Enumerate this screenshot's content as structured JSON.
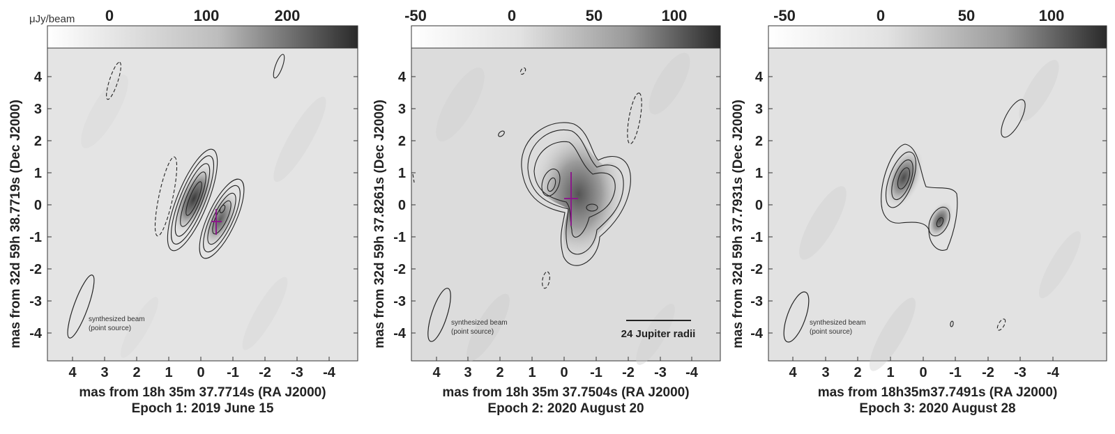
{
  "panels": [
    {
      "units_label": "μJy/beam",
      "colorbar_ticks": [
        "0",
        "100",
        "200"
      ],
      "x_ticks": [
        "4",
        "3",
        "2",
        "1",
        "0",
        "-1",
        "-2",
        "-3",
        "-4"
      ],
      "y_ticks": [
        "4",
        "3",
        "2",
        "1",
        "0",
        "-1",
        "-2",
        "-3",
        "-4"
      ],
      "xlabel": "mas from 18h 35m 37.7714s   (RA J2000)",
      "ylabel": "mas from  32d 59h 38.7719s  (Dec J2000)",
      "epoch": "Epoch 1: 2019 June 15",
      "beam_label_1": "synthesized beam",
      "beam_label_2": "(point source)",
      "scale_bar": ""
    },
    {
      "units_label": "",
      "colorbar_ticks": [
        "-50",
        "0",
        "50",
        "100"
      ],
      "x_ticks": [
        "4",
        "3",
        "2",
        "1",
        "0",
        "-1",
        "-2",
        "-3",
        "-4"
      ],
      "y_ticks": [
        "4",
        "3",
        "2",
        "1",
        "0",
        "-1",
        "-2",
        "-3",
        "-4"
      ],
      "xlabel": "mas from 18h 35m 37.7504s  (RA J2000)",
      "ylabel": "mas from  32d 59h 37.8261s  (Dec J2000)",
      "epoch": "Epoch 2: 2020 August 20",
      "beam_label_1": "synthesized beam",
      "beam_label_2": "(point source)",
      "scale_bar": "24 Jupiter radii"
    },
    {
      "units_label": "",
      "colorbar_ticks": [
        "-50",
        "0",
        "50",
        "100"
      ],
      "x_ticks": [
        "4",
        "3",
        "2",
        "1",
        "0",
        "-1",
        "-2",
        "-3",
        "-4"
      ],
      "y_ticks": [
        "4",
        "3",
        "2",
        "1",
        "0",
        "-1",
        "-2",
        "-3",
        "-4"
      ],
      "xlabel": "mas from  18h35m37.7491s    (RA J2000)",
      "ylabel": "mas from  32d 59h 37.7931s  (Dec J2000)",
      "epoch": "Epoch 3: 2020 August 28",
      "beam_label_1": "synthesized beam",
      "beam_label_2": "(point source)",
      "scale_bar": ""
    }
  ],
  "colors": {
    "marker": "#8a1a8a",
    "contour": "#222222",
    "frame": "#333333"
  }
}
